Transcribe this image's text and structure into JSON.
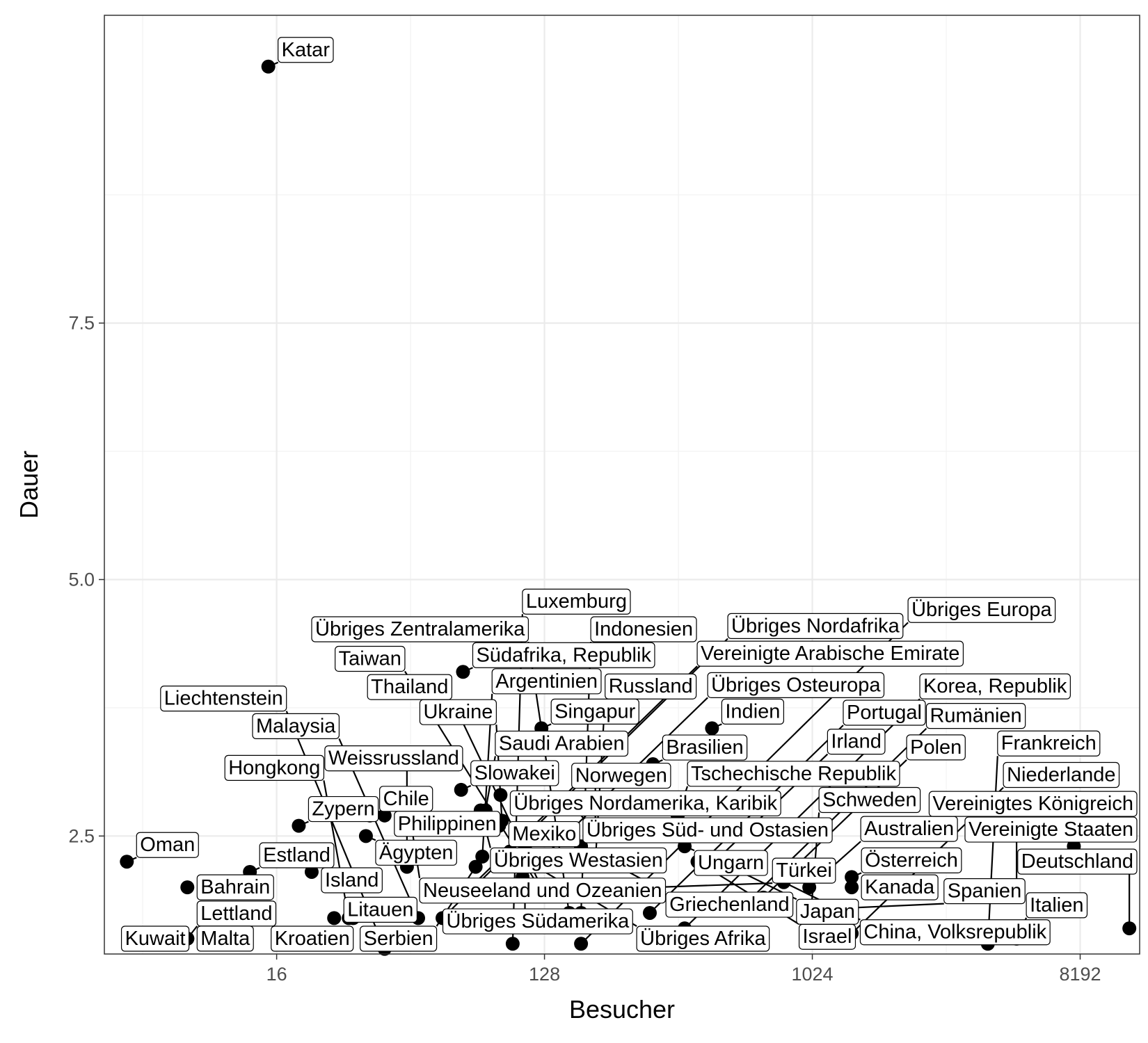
{
  "chart_data": {
    "type": "scatter",
    "title": "",
    "xlabel": "Besucher",
    "ylabel": "Dauer",
    "x_scale": "log2",
    "xlim": [
      4.2,
      13000
    ],
    "ylim": [
      1.35,
      10.5
    ],
    "x_ticks": [
      16,
      128,
      1024,
      8192
    ],
    "x_tick_labels": [
      "16",
      "128",
      "1024",
      "8192"
    ],
    "y_ticks": [
      2.5,
      5.0,
      7.5
    ],
    "y_tick_labels": [
      "2.5",
      "5.0",
      "7.5"
    ],
    "grid": true,
    "theme": "bw",
    "point_color": "#000000",
    "labels_style": "boxed, repelled with connector lines",
    "points": [
      {
        "label": "Katar",
        "x": 15,
        "y": 10.0
      },
      {
        "label": "Vereinigte Arabische Emirate",
        "x": 72,
        "y": 2.0
      },
      {
        "label": "Saudi Arabien",
        "x": 81,
        "y": 2.75
      },
      {
        "label": "Ukraine",
        "x": 92,
        "y": 2.65
      },
      {
        "label": "Übriges Süd- und Ostasien",
        "x": 160,
        "y": 2.8
      },
      {
        "label": "Weissrussland",
        "x": 44,
        "y": 2.2
      },
      {
        "label": "Südafrika, Republik",
        "x": 68,
        "y": 4.1
      },
      {
        "label": "Singapur",
        "x": 125,
        "y": 3.55
      },
      {
        "label": "Norwegen",
        "x": 190,
        "y": 2.6
      },
      {
        "label": "Israel",
        "x": 420,
        "y": 2.25
      },
      {
        "label": "Neuseeland und Ozeanien",
        "x": 45,
        "y": 2.7
      },
      {
        "label": "Slowakei",
        "x": 67,
        "y": 2.95
      },
      {
        "label": "Übriges Afrika",
        "x": 98,
        "y": 2.35
      },
      {
        "label": "Indien",
        "x": 470,
        "y": 3.55
      },
      {
        "label": "Irland",
        "x": 460,
        "y": 2.2
      },
      {
        "label": "Japan",
        "x": 500,
        "y": 2.25
      },
      {
        "label": "Ägypten",
        "x": 32,
        "y": 2.5
      },
      {
        "label": "Chile",
        "x": 33,
        "y": 2.7
      },
      {
        "label": "Übriges Westasien",
        "x": 78,
        "y": 2.75
      },
      {
        "label": "Übriges Nordamerika, Karibik",
        "x": 91,
        "y": 2.9
      },
      {
        "label": "Brasilien",
        "x": 297,
        "y": 3.2
      },
      {
        "label": "Ungarn",
        "x": 380,
        "y": 2.4
      },
      {
        "label": "Kanada",
        "x": 1390,
        "y": 2.0
      },
      {
        "label": "Australien",
        "x": 1000,
        "y": 2.0
      },
      {
        "label": "Zypern",
        "x": 19,
        "y": 2.6
      },
      {
        "label": "Philippinen",
        "x": 37,
        "y": 2.7
      },
      {
        "label": "Mexiko",
        "x": 90,
        "y": 2.6
      },
      {
        "label": "Griechenland",
        "x": 170,
        "y": 2.4
      },
      {
        "label": "Tschechische Republik",
        "x": 360,
        "y": 2.7
      },
      {
        "label": "Polen",
        "x": 700,
        "y": 1.9
      },
      {
        "label": "China, Volksrepublik",
        "x": 820,
        "y": 2.05
      },
      {
        "label": "Vereinigte Staaten",
        "x": 7800,
        "y": 2.4
      },
      {
        "label": "Oman",
        "x": 5,
        "y": 2.25
      },
      {
        "label": "Serbien",
        "x": 75,
        "y": 2.2
      },
      {
        "label": "Argentinien",
        "x": 79,
        "y": 2.3
      },
      {
        "label": "Übriges Südamerika",
        "x": 110,
        "y": 2.4
      },
      {
        "label": "Bahrain",
        "x": 8,
        "y": 2.0
      },
      {
        "label": "Thailand",
        "x": 125,
        "y": 2.0
      },
      {
        "label": "Russland",
        "x": 190,
        "y": 2.25
      },
      {
        "label": "Türkei",
        "x": 300,
        "y": 2.0
      },
      {
        "label": "Österreich",
        "x": 1390,
        "y": 2.1
      },
      {
        "label": "Vereinigtes Königreich",
        "x": 5000,
        "y": 2.0
      },
      {
        "label": "Estland",
        "x": 13,
        "y": 2.15
      },
      {
        "label": "Island",
        "x": 21,
        "y": 2.15
      },
      {
        "label": "Übriges Nordafrika",
        "x": 58,
        "y": 1.7
      },
      {
        "label": "Übriges Osteuropa",
        "x": 108,
        "y": 2.1
      },
      {
        "label": "Lettland",
        "x": 8,
        "y": 1.5
      },
      {
        "label": "Taiwan",
        "x": 126,
        "y": 1.95
      },
      {
        "label": "Rumänien",
        "x": 590,
        "y": 1.8
      },
      {
        "label": "Spanien",
        "x": 1380,
        "y": 1.8
      },
      {
        "label": "Italien",
        "x": 5000,
        "y": 1.5
      },
      {
        "label": "Deutschland",
        "x": 12000,
        "y": 1.6
      },
      {
        "label": "Kroatien",
        "x": 29,
        "y": 1.7
      },
      {
        "label": "Malaysia",
        "x": 48,
        "y": 1.7
      },
      {
        "label": "Indonesien",
        "x": 170,
        "y": 1.75
      },
      {
        "label": "Übriges Zentralamerika",
        "x": 155,
        "y": 1.75
      },
      {
        "label": "Litauen",
        "x": 25,
        "y": 1.7
      },
      {
        "label": "Portugal",
        "x": 290,
        "y": 1.75
      },
      {
        "label": "Kuwait",
        "x": 7,
        "y": 1.45
      },
      {
        "label": "Malta",
        "x": 8,
        "y": 1.5
      },
      {
        "label": "Hongkong",
        "x": 28,
        "y": 1.7
      },
      {
        "label": "Liechtenstein",
        "x": 37,
        "y": 1.4
      },
      {
        "label": "Luxemburg",
        "x": 100,
        "y": 1.45
      },
      {
        "label": "Übriges Europa",
        "x": 170,
        "y": 1.45
      },
      {
        "label": "Korea, Republik",
        "x": 380,
        "y": 1.6
      },
      {
        "label": "Schweden",
        "x": 1000,
        "y": 1.55
      },
      {
        "label": "Niederlande",
        "x": 1390,
        "y": 1.55
      },
      {
        "label": "Frankreich",
        "x": 4000,
        "y": 1.45
      }
    ]
  }
}
